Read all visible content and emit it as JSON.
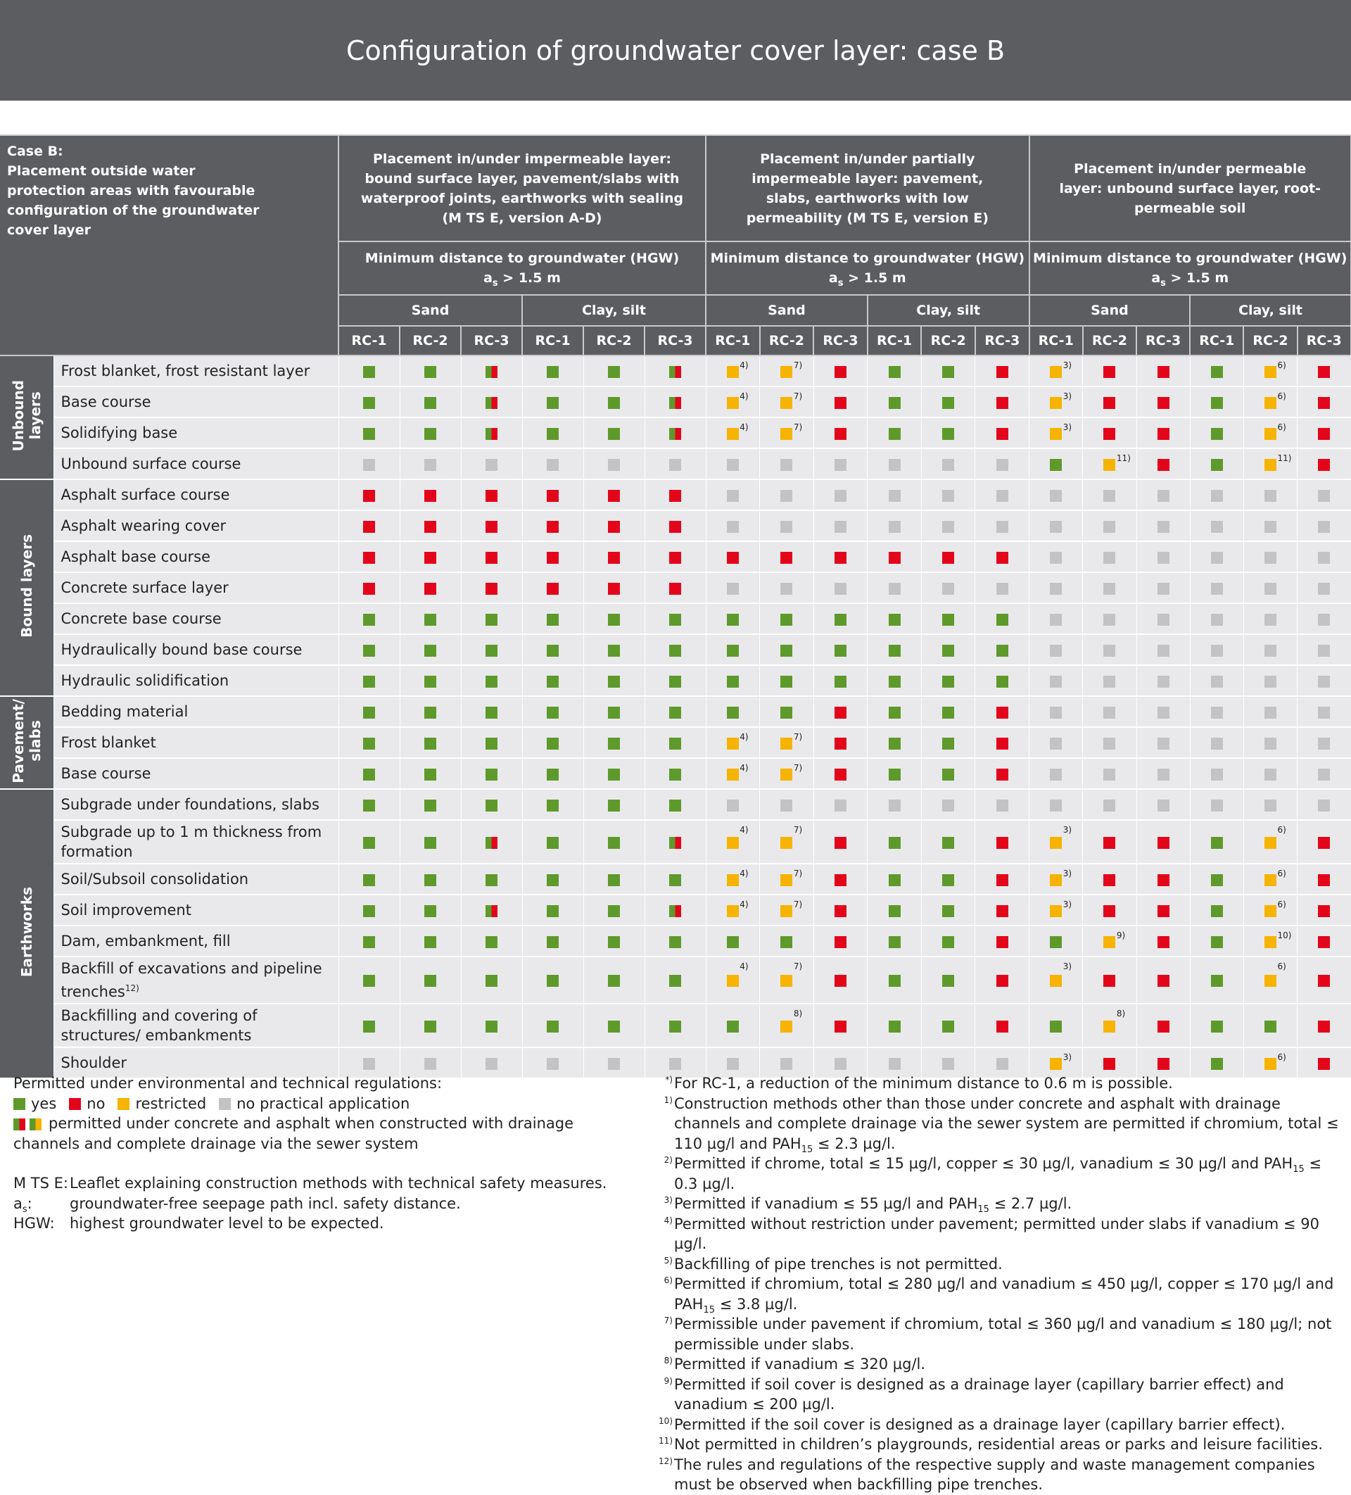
{
  "header": {
    "title": "Configuration of groundwater cover layer: case B"
  },
  "table": {
    "case_title": "Case B:",
    "case_text": "Placement outside water protection areas with favourable configuration of the groundwater cover layer",
    "placements": [
      {
        "title": "Placement in/under impermeable layer: bound surface layer, pavement/slabs with waterproof joints, earthworks with sealing (M TS E, version A-D)",
        "distance_label": "Minimum distance to groundwater (HGW)",
        "distance": {
          "pre": "a",
          "sub": "s",
          "post": " > 1.5 m"
        },
        "soils": [
          "Sand",
          "Clay, silt"
        ]
      },
      {
        "title": "Placement in/under partially impermeable layer: pavement, slabs, earthworks with low permeability (M TS E, version E)",
        "distance_label": "Minimum distance to groundwater (HGW)",
        "distance": {
          "pre": "a",
          "sub": "s",
          "post": " > 1.5 m"
        },
        "soils": [
          "Sand",
          "Clay, silt"
        ]
      },
      {
        "title": "Placement in/under permeable layer: unbound surface layer, root-permeable soil",
        "distance_label": "Minimum distance to groundwater (HGW)",
        "distance": {
          "pre": "a",
          "sub": "s",
          "post": " > 1.5 m"
        },
        "soils": [
          "Sand",
          "Clay, silt"
        ]
      }
    ],
    "rc": [
      "RC-1",
      "RC-2",
      "RC-3"
    ],
    "groups": [
      {
        "label": [
          "Unbound",
          "layers"
        ],
        "rows": [
          {
            "label": "Frost blanket, frost resistant layer",
            "cells": [
              "g",
              "g",
              "s",
              "g",
              "g",
              "s",
              [
                "y",
                "4)"
              ],
              [
                "y",
                "7)"
              ],
              "r",
              "g",
              "g",
              "r",
              [
                "y",
                "3)"
              ],
              "r",
              "r",
              "g",
              [
                "y",
                "6)"
              ],
              "r"
            ]
          },
          {
            "label": "Base course",
            "cells": [
              "g",
              "g",
              "s",
              "g",
              "g",
              "s",
              [
                "y",
                "4)"
              ],
              [
                "y",
                "7)"
              ],
              "r",
              "g",
              "g",
              "r",
              [
                "y",
                "3)"
              ],
              "r",
              "r",
              "g",
              [
                "y",
                "6)"
              ],
              "r"
            ]
          },
          {
            "label": "Solidifying base",
            "cells": [
              "g",
              "g",
              "s",
              "g",
              "g",
              "s",
              [
                "y",
                "4)"
              ],
              [
                "y",
                "7)"
              ],
              "r",
              "g",
              "g",
              "r",
              [
                "y",
                "3)"
              ],
              "r",
              "r",
              "g",
              [
                "y",
                "6)"
              ],
              "r"
            ]
          },
          {
            "label": "Unbound surface course",
            "cells": [
              "n",
              "n",
              "n",
              "n",
              "n",
              "n",
              "n",
              "n",
              "n",
              "n",
              "n",
              "n",
              "g",
              [
                "y",
                "11)"
              ],
              "r",
              "g",
              [
                "y",
                "11)"
              ],
              "r"
            ]
          }
        ]
      },
      {
        "label": [
          "Bound layers"
        ],
        "rows": [
          {
            "label": "Asphalt surface course",
            "cells": [
              "r",
              "r",
              "r",
              "r",
              "r",
              "r",
              "n",
              "n",
              "n",
              "n",
              "n",
              "n",
              "n",
              "n",
              "n",
              "n",
              "n",
              "n"
            ]
          },
          {
            "label": "Asphalt wearing cover",
            "cells": [
              "r",
              "r",
              "r",
              "r",
              "r",
              "r",
              "n",
              "n",
              "n",
              "n",
              "n",
              "n",
              "n",
              "n",
              "n",
              "n",
              "n",
              "n"
            ]
          },
          {
            "label": "Asphalt base course",
            "cells": [
              "r",
              "r",
              "r",
              "r",
              "r",
              "r",
              "r",
              "r",
              "r",
              "r",
              "r",
              "r",
              "n",
              "n",
              "n",
              "n",
              "n",
              "n"
            ]
          },
          {
            "label": "Concrete surface layer",
            "cells": [
              "r",
              "r",
              "r",
              "r",
              "r",
              "r",
              "n",
              "n",
              "n",
              "n",
              "n",
              "n",
              "n",
              "n",
              "n",
              "n",
              "n",
              "n"
            ]
          },
          {
            "label": "Concrete base course",
            "cells": [
              "g",
              "g",
              "g",
              "g",
              "g",
              "g",
              "g",
              "g",
              "g",
              "g",
              "g",
              "g",
              "n",
              "n",
              "n",
              "n",
              "n",
              "n"
            ]
          },
          {
            "label": "Hydraulically bound base course",
            "cells": [
              "g",
              "g",
              "g",
              "g",
              "g",
              "g",
              "g",
              "g",
              "g",
              "g",
              "g",
              "g",
              "n",
              "n",
              "n",
              "n",
              "n",
              "n"
            ]
          },
          {
            "label": "Hydraulic solidification",
            "cells": [
              "g",
              "g",
              "g",
              "g",
              "g",
              "g",
              "g",
              "g",
              "g",
              "g",
              "g",
              "g",
              "n",
              "n",
              "n",
              "n",
              "n",
              "n"
            ]
          }
        ]
      },
      {
        "label": [
          "Pavement/",
          "slabs"
        ],
        "rows": [
          {
            "label": "Bedding material",
            "cells": [
              "g",
              "g",
              "g",
              "g",
              "g",
              "g",
              "g",
              "g",
              "r",
              "g",
              "g",
              "r",
              "n",
              "n",
              "n",
              "n",
              "n",
              "n"
            ]
          },
          {
            "label": "Frost blanket",
            "cells": [
              "g",
              "g",
              "g",
              "g",
              "g",
              "g",
              [
                "y",
                "4)"
              ],
              [
                "y",
                "7)"
              ],
              "r",
              "g",
              "g",
              "r",
              "n",
              "n",
              "n",
              "n",
              "n",
              "n"
            ]
          },
          {
            "label": "Base course",
            "cells": [
              "g",
              "g",
              "g",
              "g",
              "g",
              "g",
              [
                "y",
                "4)"
              ],
              [
                "y",
                "7)"
              ],
              "r",
              "g",
              "g",
              "r",
              "n",
              "n",
              "n",
              "n",
              "n",
              "n"
            ]
          }
        ]
      },
      {
        "label": [
          "Earthworks"
        ],
        "rows": [
          {
            "label": "Subgrade under foundations, slabs",
            "cells": [
              "g",
              "g",
              "g",
              "g",
              "g",
              "g",
              "n",
              "n",
              "n",
              "n",
              "n",
              "n",
              "n",
              "n",
              "n",
              "n",
              "n",
              "n"
            ]
          },
          {
            "label": "Subgrade up to 1 m thickness from formation",
            "cells": [
              "g",
              "g",
              "s",
              "g",
              "g",
              "s",
              [
                "y",
                "4)"
              ],
              [
                "y",
                "7)"
              ],
              "r",
              "g",
              "g",
              "r",
              [
                "y",
                "3)"
              ],
              "r",
              "r",
              "g",
              [
                "y",
                "6)"
              ],
              "r"
            ]
          },
          {
            "label": "Soil/Subsoil consolidation",
            "cells": [
              "g",
              "g",
              "g",
              "g",
              "g",
              "g",
              [
                "y",
                "4)"
              ],
              [
                "y",
                "7)"
              ],
              "r",
              "g",
              "g",
              "r",
              [
                "y",
                "3)"
              ],
              "r",
              "r",
              "g",
              [
                "y",
                "6)"
              ],
              "r"
            ]
          },
          {
            "label": "Soil improvement",
            "cells": [
              "g",
              "g",
              "s",
              "g",
              "g",
              "s",
              [
                "y",
                "4)"
              ],
              [
                "y",
                "7)"
              ],
              "r",
              "g",
              "g",
              "r",
              [
                "y",
                "3)"
              ],
              "r",
              "r",
              "g",
              [
                "y",
                "6)"
              ],
              "r"
            ]
          },
          {
            "label": "Dam, embankment, fill",
            "cells": [
              "g",
              "g",
              "g",
              "g",
              "g",
              "g",
              "g",
              "g",
              "r",
              "g",
              "g",
              "r",
              "g",
              [
                "y",
                "9)"
              ],
              "r",
              "g",
              [
                "y",
                "10)"
              ],
              "r"
            ]
          },
          {
            "label": "Backfill of excavations and pipeline trenches",
            "label_note": "12)",
            "cells": [
              "g",
              "g",
              "g",
              "g",
              "g",
              "g",
              [
                "y",
                "4)"
              ],
              [
                "y",
                "7)"
              ],
              "r",
              "g",
              "g",
              "r",
              [
                "y",
                "3)"
              ],
              "r",
              "r",
              "g",
              [
                "y",
                "6)"
              ],
              "r"
            ]
          },
          {
            "label": "Backfilling and covering of structures/ embankments",
            "cells": [
              "g",
              "g",
              "g",
              "g",
              "g",
              "g",
              "g",
              [
                "y",
                "8)"
              ],
              "r",
              "g",
              "g",
              "r",
              "g",
              [
                "y",
                "8)"
              ],
              "r",
              "g",
              "g",
              "r"
            ]
          },
          {
            "label": "Shoulder",
            "cells": [
              "n",
              "n",
              "n",
              "n",
              "n",
              "n",
              "n",
              "n",
              "n",
              "n",
              "n",
              "n",
              [
                "y",
                "3)"
              ],
              "r",
              "r",
              "g",
              [
                "y",
                "6)"
              ],
              "r"
            ]
          }
        ]
      }
    ]
  },
  "legend": {
    "intro": "Permitted under environmental and technical regulations:",
    "yes": "yes",
    "no": "no",
    "restricted": "restricted",
    "na": "no practical application",
    "split": "permitted under concrete and asphalt when constructed with drainage channels and complete drainage via the sewer system"
  },
  "abbreviations": [
    {
      "term": [
        "M TS E:"
      ],
      "text": "Leaflet explaining construction methods with technical safety measures."
    },
    {
      "term": [
        "a",
        {
          "sub": "s"
        },
        ":"
      ],
      "text": "groundwater-free seepage path incl. safety distance."
    },
    {
      "term": [
        "HGW:"
      ],
      "text": "highest groundwater level to be expected."
    }
  ],
  "footnotes": [
    {
      "mark": "*)",
      "text": [
        "For RC-1, a reduction of the minimum distance to 0.6 m is possible."
      ]
    },
    {
      "mark": "1)",
      "text": [
        "Construction methods other than those under concrete and asphalt with drainage channels and complete drainage via the sewer system are permitted if chromium, total ≤ 110 µg/l and PAH",
        {
          "sub": "15"
        },
        " ≤ 2.3 µg/l."
      ]
    },
    {
      "mark": "2)",
      "text": [
        "Permitted if chrome, total ≤ 15 µg/l, copper ≤ 30 µg/l, vanadium ≤ 30 µg/l and PAH",
        {
          "sub": "15"
        },
        " ≤ 0.3 µg/l."
      ]
    },
    {
      "mark": "3)",
      "text": [
        "Permitted if vanadium ≤ 55 µg/l and PAH",
        {
          "sub": "15"
        },
        " ≤ 2.7 µg/l."
      ]
    },
    {
      "mark": "4)",
      "text": [
        "Permitted without restriction under pavement; permitted under slabs if vanadium ≤ 90 µg/l."
      ]
    },
    {
      "mark": "5)",
      "text": [
        "Backfilling of pipe trenches is not permitted."
      ]
    },
    {
      "mark": "6)",
      "text": [
        "Permitted if chromium, total ≤ 280 µg/l and vanadium ≤ 450 µg/l, copper ≤ 170 µg/l and PAH",
        {
          "sub": "15"
        },
        " ≤ 3.8 µg/l."
      ]
    },
    {
      "mark": "7)",
      "text": [
        "Permissible under pavement if chromium, total ≤ 360 µg/l and vanadium ≤ 180 µg/l; not permissible under slabs."
      ]
    },
    {
      "mark": "8)",
      "text": [
        "Permitted if vanadium ≤ 320 µg/l."
      ]
    },
    {
      "mark": "9)",
      "text": [
        "Permitted if soil cover is designed as a drainage layer (capillary barrier effect) and vanadium ≤ 200 µg/l."
      ]
    },
    {
      "mark": "10)",
      "text": [
        "Permitted if the soil cover is designed as a drainage layer (capillary barrier effect)."
      ]
    },
    {
      "mark": "11)",
      "text": [
        "Not permitted in children’s playgrounds, residential areas or parks and leisure facilities."
      ]
    },
    {
      "mark": "12)",
      "text": [
        "The rules and regulations of the respective supply and waste management companies must be observed when backfilling pipe trenches."
      ]
    }
  ]
}
